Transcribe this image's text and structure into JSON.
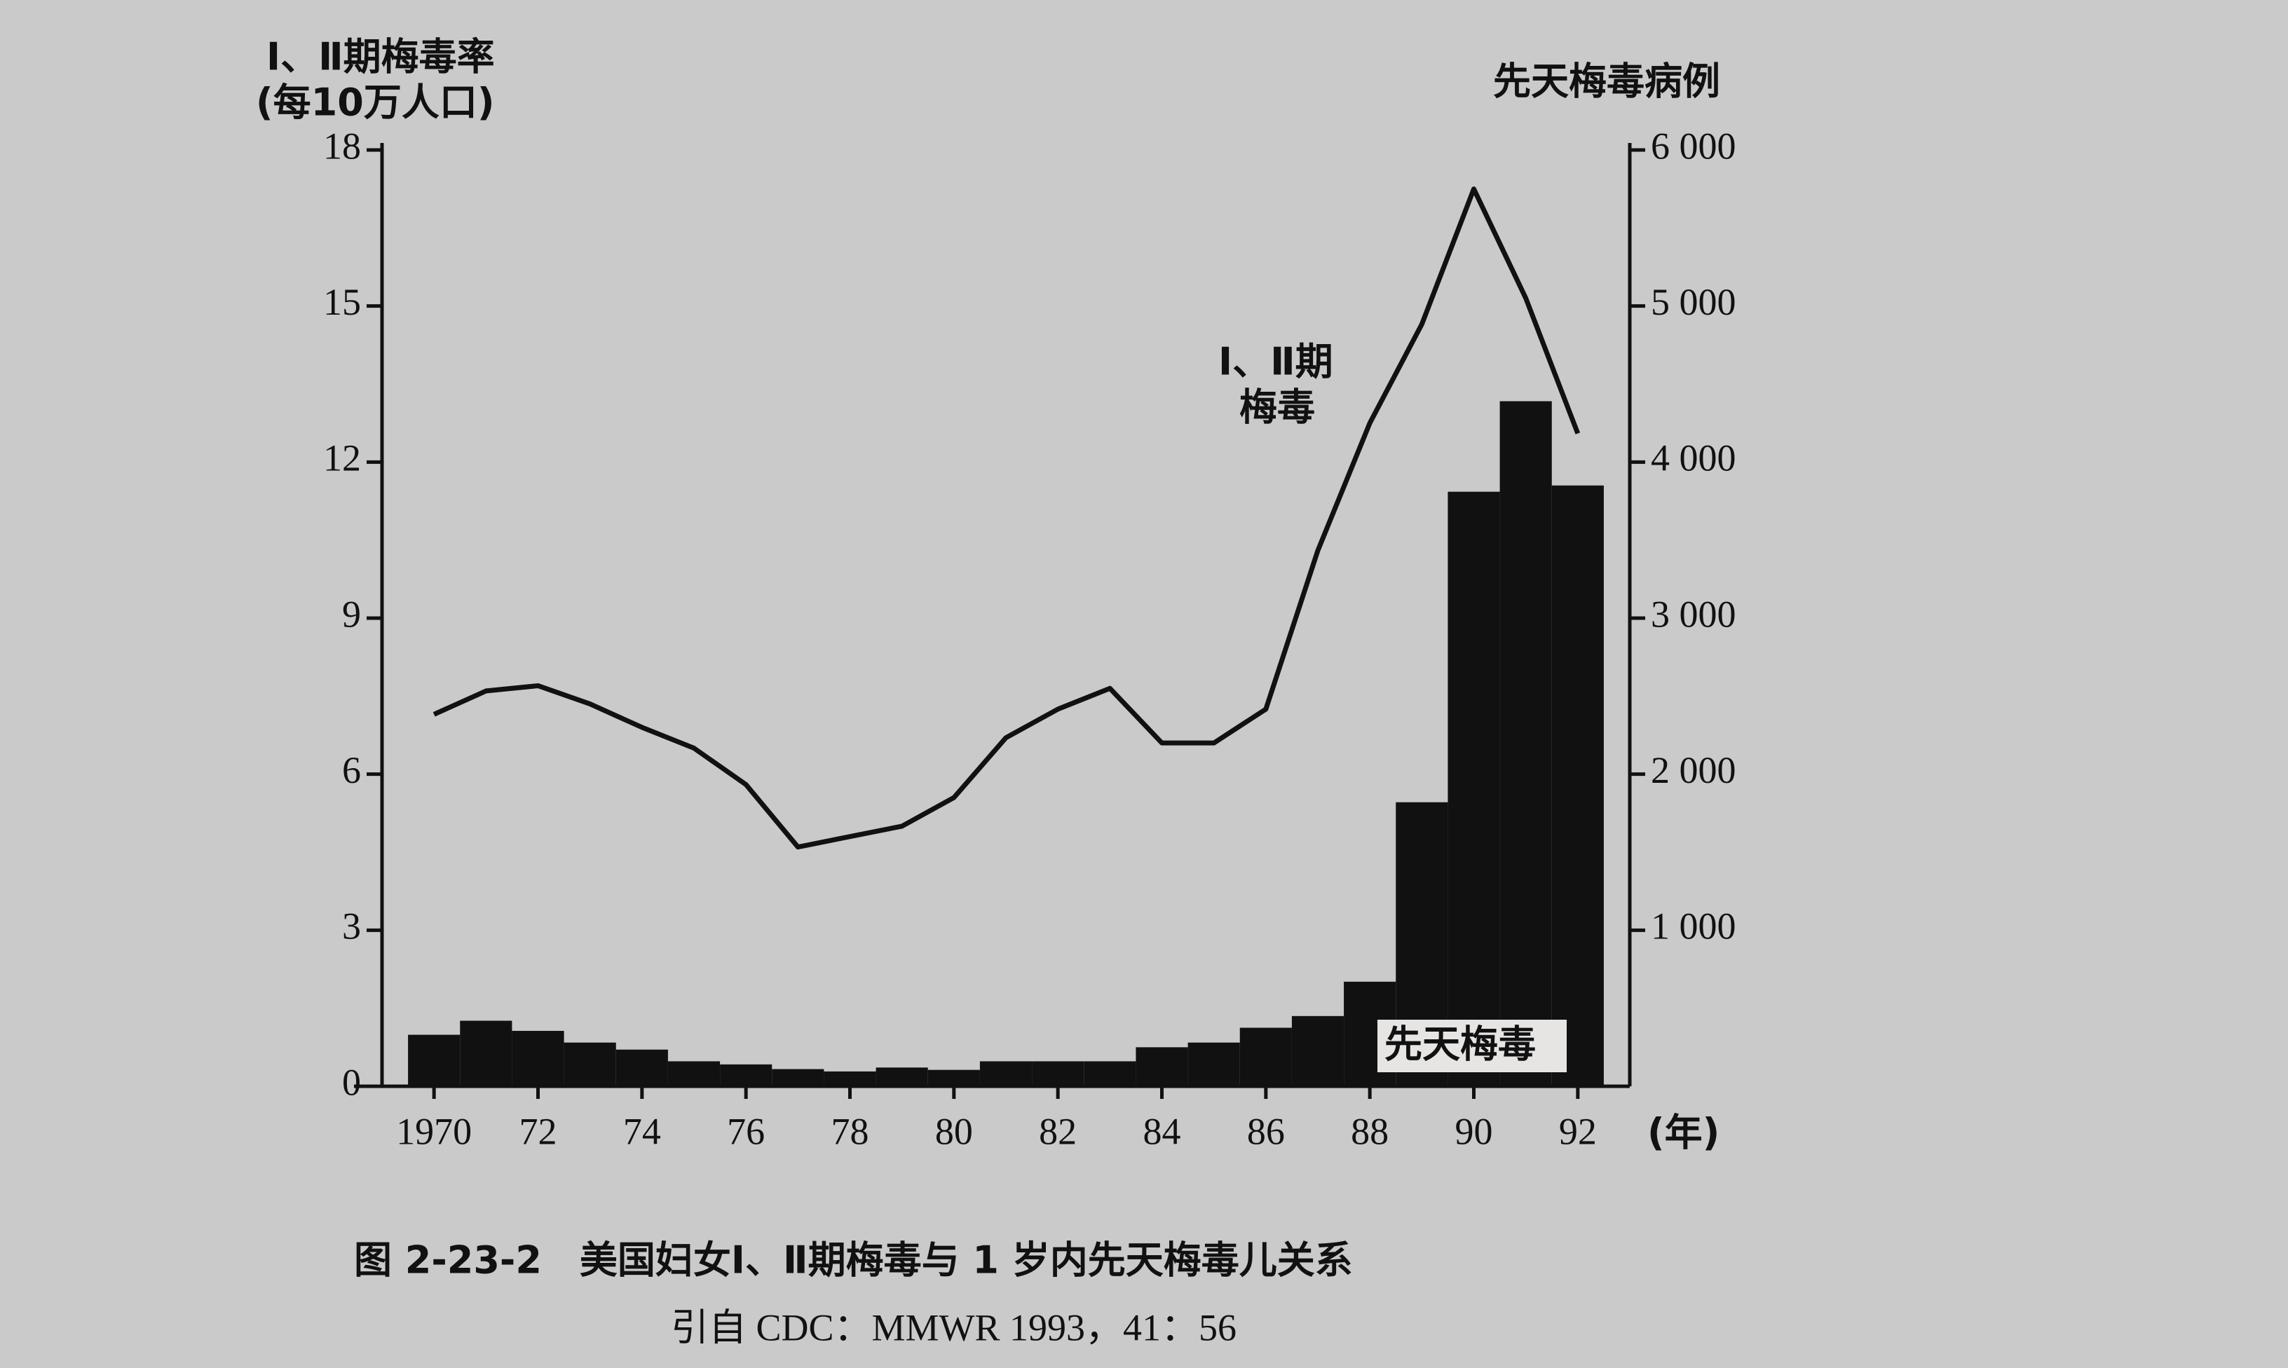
{
  "chart_data": {
    "type": "bar-line",
    "y_label": [
      "Ⅰ、Ⅱ期梅毒率",
      "(每10万人口)"
    ],
    "y2_label": "先天梅毒病例",
    "x_unit": "(年)",
    "annotations": [
      "Ⅰ、Ⅱ期",
      "梅毒",
      "先天梅毒"
    ],
    "caption": "图 2-23-2　美国妇女Ⅰ、Ⅱ期梅毒与 1 岁内先天梅毒儿关系",
    "source": "引自 CDC：MMWR 1993，41：56",
    "x": [
      1970,
      1971,
      1972,
      1973,
      1974,
      1975,
      1976,
      1977,
      1978,
      1979,
      1980,
      1981,
      1982,
      1983,
      1984,
      1985,
      1986,
      1987,
      1988,
      1989,
      1990,
      1991,
      1992
    ],
    "series": [
      {
        "type": "bar",
        "axis": "y2",
        "color": "#111111",
        "values": [
          330,
          420,
          355,
          280,
          235,
          160,
          140,
          110,
          95,
          120,
          105,
          160,
          160,
          160,
          250,
          280,
          375,
          450,
          670,
          1820,
          3810,
          4390,
          3850
        ]
      },
      {
        "type": "line",
        "color": "#111111",
        "values": [
          7.15,
          7.6,
          7.7,
          7.35,
          6.9,
          6.5,
          5.8,
          4.6,
          4.8,
          5.0,
          5.55,
          6.7,
          7.25,
          7.65,
          6.6,
          6.6,
          7.25,
          10.3,
          12.75,
          14.65,
          17.25,
          15.15,
          12.55
        ]
      }
    ],
    "xlim": [
      1969,
      1993
    ],
    "xticks": [
      1970,
      {
        "value": 1972,
        "label": "72"
      },
      {
        "value": 1974,
        "label": "74"
      },
      {
        "value": 1976,
        "label": "76"
      },
      {
        "value": 1978,
        "label": "78"
      },
      {
        "value": 1980,
        "label": "80"
      },
      {
        "value": 1982,
        "label": "82"
      },
      {
        "value": 1984,
        "label": "84"
      },
      {
        "value": 1986,
        "label": "86"
      },
      {
        "value": 1988,
        "label": "88"
      },
      {
        "value": 1990,
        "label": "90"
      },
      {
        "value": 1992,
        "label": "92"
      }
    ],
    "ylim": [
      0,
      18
    ],
    "yticks": [
      0,
      3,
      6,
      9,
      12,
      15,
      18
    ],
    "y2lim": [
      0,
      6000
    ],
    "y2ticks": [
      {
        "value": 1000,
        "label": "1 000"
      },
      {
        "value": 2000,
        "label": "2 000"
      },
      {
        "value": 3000,
        "label": "3 000"
      },
      {
        "value": 4000,
        "label": "4 000"
      },
      {
        "value": 5000,
        "label": "5 000"
      },
      {
        "value": 6000,
        "label": "6 000"
      }
    ],
    "grid": false
  }
}
